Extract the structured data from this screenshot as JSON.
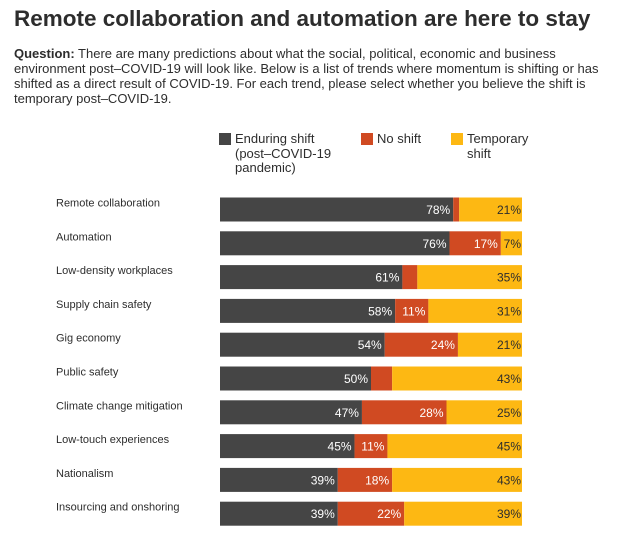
{
  "header": {
    "title": "Remote collaboration and automation are here to stay",
    "question_label": "Question:",
    "question_text": " There are many predictions about what the social, political, economic and business environment post–COVID-19 will look like. Below is a list of trends where momentum is shifting or has shifted as a direct result of COVID-19. For each trend, please select whether you believe the shift is temporary post–COVID-19."
  },
  "colors": {
    "enduring": "#454545",
    "no_shift": "#d04a22",
    "temporary": "#fdb813",
    "label_on_dark": "#ffffff",
    "label_on_light": "#2d2d2d",
    "label_small_on_yellow": "#d04a22"
  },
  "chart_data": {
    "type": "bar",
    "orientation": "horizontal",
    "stacked": true,
    "stack_total": 100,
    "legend_position": "top",
    "grid": false,
    "categories": [
      "Remote collaboration",
      "Automation",
      "Low-density workplaces",
      "Supply chain safety",
      "Gig economy",
      "Public safety",
      "Climate change mitigation",
      "Low-touch experiences",
      "Nationalism",
      "Insourcing and onshoring"
    ],
    "series": [
      {
        "name": "Enduring shift\n(post–COVID-19\npandemic)",
        "key": "enduring",
        "values": [
          78,
          76,
          61,
          58,
          54,
          50,
          47,
          45,
          39,
          39
        ]
      },
      {
        "name": "No shift",
        "key": "no_shift",
        "values": [
          2,
          17,
          5,
          11,
          24,
          7,
          28,
          11,
          18,
          22
        ]
      },
      {
        "name": "Temporary\nshift",
        "key": "temporary",
        "values": [
          21,
          7,
          35,
          31,
          21,
          43,
          25,
          45,
          43,
          39
        ]
      }
    ],
    "value_suffix": "%"
  }
}
